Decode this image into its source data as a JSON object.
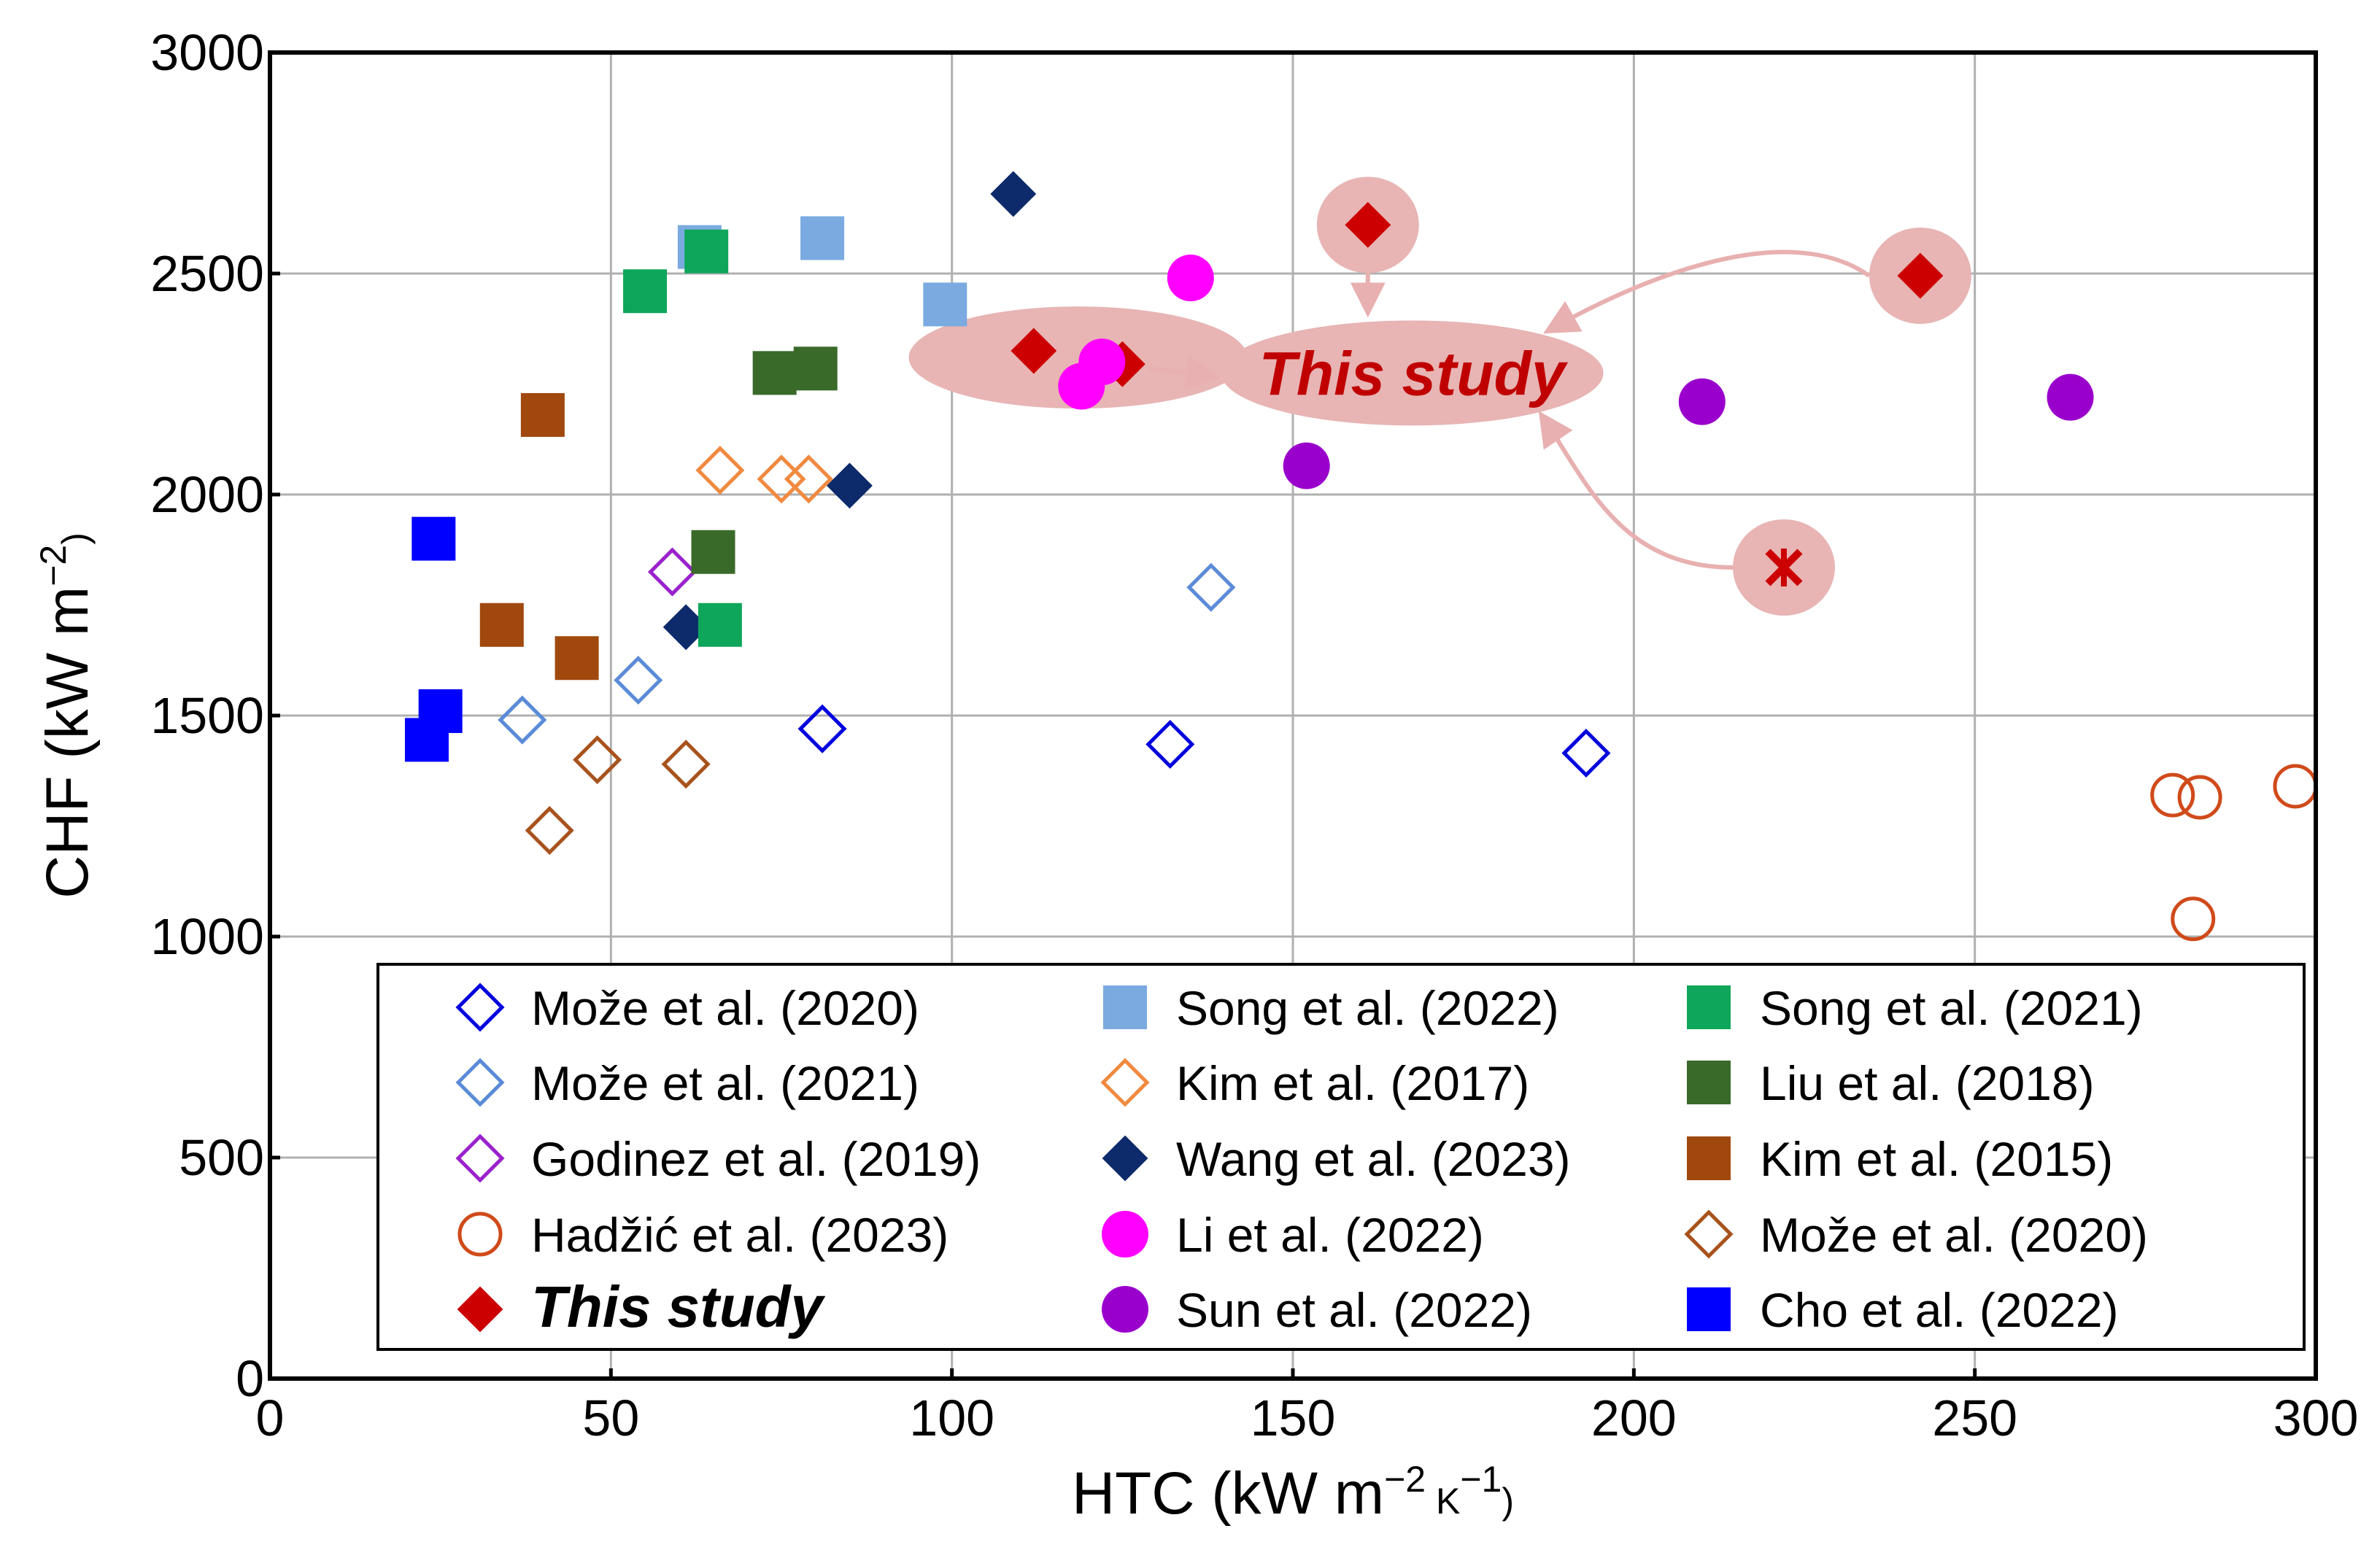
{
  "chart_data": {
    "type": "scatter",
    "xlabel": "HTC (kW m",
    "xlabel_sup1": "−2",
    "xlabel_mid": " K",
    "xlabel_sup2": "−1",
    "xlabel_end": ")",
    "ylabel": "CHF (kW m",
    "ylabel_sup": "−2",
    "ylabel_end": ")",
    "xlim": [
      0,
      300
    ],
    "ylim": [
      0,
      3000
    ],
    "xticks": [
      0,
      50,
      100,
      150,
      200,
      250,
      300
    ],
    "yticks": [
      0,
      500,
      1000,
      1500,
      2000,
      2500,
      3000
    ],
    "grid": true,
    "legend_position": "bottom-right",
    "annotation": "This study",
    "colors": {
      "blue_open": "#0000dd",
      "lightblue_open": "#5b8bd8",
      "purple_open": "#9a22cc",
      "orange_circle": "#d04a1a",
      "this_study": "#cc0000",
      "song2022": "#7aaae0",
      "kim2017_open": "#f08a40",
      "wang": "#0d2a6b",
      "li": "#ff00ff",
      "sun": "#9a00cc",
      "song2021": "#0ea65a",
      "liu": "#3a6a2a",
      "kim2015": "#a0480e",
      "moze2020b_open": "#a8521c",
      "cho": "#0000ff",
      "highlight": "#e8b4b4",
      "arrow": "#e8b0b0"
    },
    "series": [
      {
        "name": "Može et al. (2020)",
        "marker": "diamond-open",
        "color": "#0000dd",
        "points": [
          [
            81,
            1470
          ],
          [
            132,
            1435
          ],
          [
            193,
            1415
          ]
        ]
      },
      {
        "name": "Može et al. (2021)",
        "marker": "diamond-open",
        "color": "#5b8bd8",
        "points": [
          [
            37,
            1490
          ],
          [
            54,
            1580
          ],
          [
            138,
            1790
          ]
        ]
      },
      {
        "name": "Godinez et al. (2019)",
        "marker": "diamond-open",
        "color": "#9a22cc",
        "points": [
          [
            59,
            1825
          ]
        ]
      },
      {
        "name": "Hadžić et al. (2023)",
        "marker": "circle-open",
        "color": "#d04a1a",
        "points": [
          [
            279,
            1320
          ],
          [
            283,
            1315
          ],
          [
            282,
            1040
          ],
          [
            297,
            1340
          ]
        ]
      },
      {
        "name": "This study",
        "marker": "diamond",
        "color": "#cc0000",
        "points": [
          [
            112,
            2325
          ],
          [
            125,
            2295
          ],
          [
            161,
            2610
          ],
          [
            242,
            2495
          ]
        ]
      },
      {
        "name": "Song et al. (2022)",
        "marker": "square",
        "color": "#7aaae0",
        "points": [
          [
            63,
            2560
          ],
          [
            81,
            2580
          ],
          [
            99,
            2430
          ]
        ]
      },
      {
        "name": "Kim et al. (2017)",
        "marker": "diamond-open",
        "color": "#f08a40",
        "points": [
          [
            66,
            2055
          ],
          [
            75,
            2035
          ],
          [
            79,
            2035
          ]
        ]
      },
      {
        "name": "Wang et al. (2023)",
        "marker": "diamond",
        "color": "#0d2a6b",
        "points": [
          [
            109,
            2680
          ],
          [
            85,
            2020
          ],
          [
            61,
            1700
          ]
        ]
      },
      {
        "name": "Li et al. (2022)",
        "marker": "circle",
        "color": "#ff00ff",
        "points": [
          [
            135,
            2490
          ],
          [
            122,
            2300
          ],
          [
            119,
            2245
          ]
        ]
      },
      {
        "name": "Sun et al. (2022)",
        "marker": "circle",
        "color": "#9a00cc",
        "points": [
          [
            152,
            2065
          ],
          [
            210,
            2210
          ],
          [
            264,
            2220
          ]
        ]
      },
      {
        "name": "Song et al. (2021)",
        "marker": "square",
        "color": "#0ea65a",
        "points": [
          [
            55,
            2460
          ],
          [
            64,
            2550
          ],
          [
            66,
            1705
          ]
        ]
      },
      {
        "name": "Liu et al. (2018)",
        "marker": "square",
        "color": "#3a6a2a",
        "points": [
          [
            74,
            2275
          ],
          [
            80,
            2285
          ],
          [
            65,
            1870
          ]
        ]
      },
      {
        "name": "Kim et al. (2015)",
        "marker": "square",
        "color": "#a0480e",
        "points": [
          [
            40,
            2180
          ],
          [
            34,
            1705
          ],
          [
            45,
            1630
          ]
        ]
      },
      {
        "name": "Može et al. (2020)",
        "marker": "diamond-open",
        "color": "#a8521c",
        "points": [
          [
            48,
            1400
          ],
          [
            61,
            1390
          ],
          [
            41,
            1240
          ]
        ]
      },
      {
        "name": "Cho et al. (2022)",
        "marker": "square",
        "color": "#0000ff",
        "points": [
          [
            24,
            1900
          ],
          [
            25,
            1510
          ],
          [
            23,
            1445
          ]
        ]
      }
    ],
    "extra_point": {
      "name": "this-study-cross",
      "marker": "cross",
      "color": "#cc0000",
      "point": [
        222,
        1835
      ]
    },
    "legend_columns": [
      [
        "Može et al. (2020)",
        "Može et al. (2021)",
        "Godinez et al. (2019)",
        "Hadžić et al. (2023)",
        "This study"
      ],
      [
        "Song et al. (2022)",
        "Kim et al. (2017)",
        "Wang et al. (2023)",
        "Li et al. (2022)",
        "Sun et al. (2022)"
      ],
      [
        "Song et al. (2021)",
        "Liu et al. (2018)",
        "Kim et al. (2015)",
        "Može et al. (2020)",
        "Cho et al. (2022)"
      ]
    ]
  }
}
